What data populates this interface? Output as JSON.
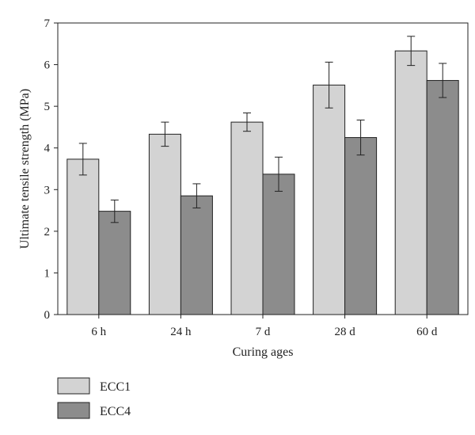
{
  "chart_data": {
    "type": "bar",
    "title": "",
    "xlabel": "Curing ages",
    "ylabel": "Ultimate tensile strength (MPa)",
    "ylim": [
      0,
      7
    ],
    "yticks": [
      "0",
      "1",
      "2",
      "3",
      "4",
      "5",
      "6",
      "7"
    ],
    "categories": [
      "6 h",
      "24 h",
      "7 d",
      "28 d",
      "60 d"
    ],
    "series": [
      {
        "name": "ECC1",
        "color": "#d3d3d3",
        "values": [
          3.73,
          4.33,
          4.62,
          5.51,
          6.33
        ],
        "error": [
          0.38,
          0.29,
          0.22,
          0.55,
          0.35
        ]
      },
      {
        "name": "ECC4",
        "color": "#8c8c8c",
        "values": [
          2.48,
          2.85,
          3.37,
          4.25,
          5.62
        ],
        "error": [
          0.27,
          0.29,
          0.41,
          0.42,
          0.41
        ]
      }
    ],
    "grid": false,
    "legend_position": "bottom-left"
  }
}
